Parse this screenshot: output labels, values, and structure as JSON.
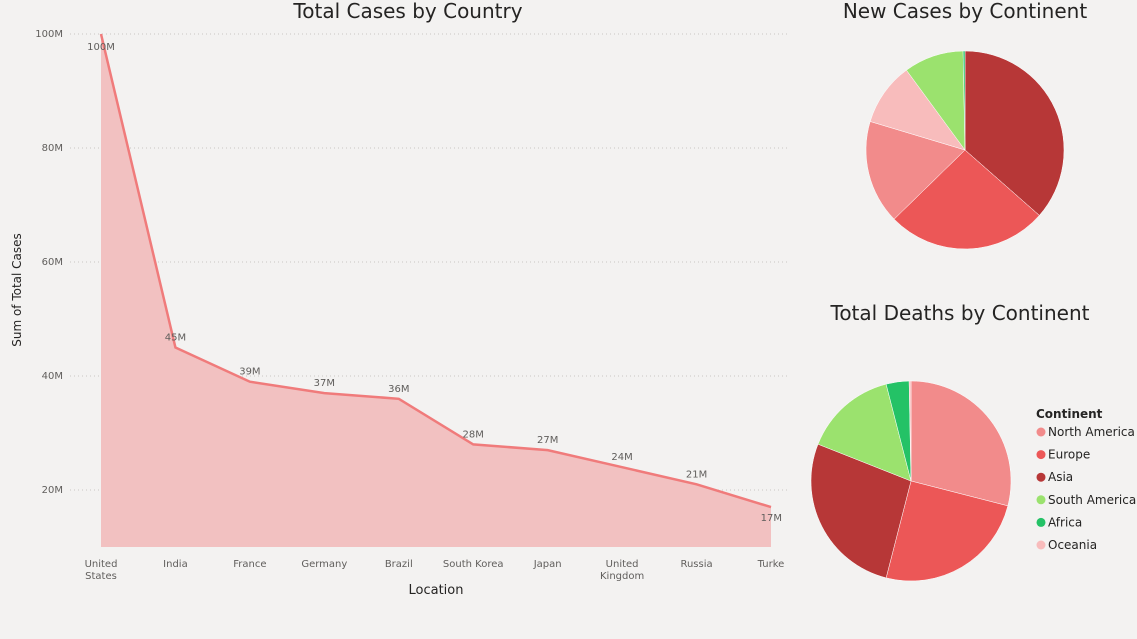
{
  "colors": {
    "area_line": "#f07b7b",
    "area_fill": "#f2c1c1",
    "north_america": "#f28b8b",
    "europe": "#ec5757",
    "asia": "#b73737",
    "south_america": "#9be26e",
    "africa": "#24c266",
    "oceania": "#f8bcbc"
  },
  "chart_data": [
    {
      "type": "area",
      "title": "Total Cases by Country",
      "xlabel": "Location",
      "ylabel": "Sum of Total Cases",
      "categories": [
        [
          "United",
          "States"
        ],
        [
          "India"
        ],
        [
          "France"
        ],
        [
          "Germany"
        ],
        [
          "Brazil"
        ],
        [
          "South Korea"
        ],
        [
          "Japan"
        ],
        [
          "United",
          "Kingdom"
        ],
        [
          "Russia"
        ],
        [
          "Turke"
        ]
      ],
      "values": [
        100,
        45,
        39,
        37,
        36,
        28,
        27,
        24,
        21,
        17
      ],
      "value_unit": "M",
      "data_labels": [
        "100M",
        "45M",
        "39M",
        "37M",
        "36M",
        "28M",
        "27M",
        "24M",
        "21M",
        "17M"
      ],
      "yticks": [
        20,
        40,
        60,
        80,
        100
      ],
      "ytick_labels": [
        "20M",
        "40M",
        "60M",
        "80M",
        "100M"
      ],
      "ylim": [
        10,
        100
      ],
      "grid": true
    },
    {
      "type": "pie",
      "title": "New Cases by Continent",
      "slices": [
        {
          "name": "Asia",
          "value": 35.5,
          "color_key": "asia"
        },
        {
          "name": "Europe",
          "value": 25.5,
          "color_key": "europe"
        },
        {
          "name": "North America",
          "value": 16.5,
          "color_key": "north_america"
        },
        {
          "name": "Oceania",
          "value": 10.0,
          "color_key": "oceania"
        },
        {
          "name": "South America",
          "value": 9.5,
          "color_key": "south_america"
        },
        {
          "name": "Africa",
          "value": 0.3,
          "color_key": "africa"
        }
      ]
    },
    {
      "type": "pie",
      "title": "Total Deaths by Continent",
      "slices": [
        {
          "name": "North America",
          "value": 29.0,
          "color_key": "north_america"
        },
        {
          "name": "Europe",
          "value": 25.0,
          "color_key": "europe"
        },
        {
          "name": "Asia",
          "value": 27.0,
          "color_key": "asia"
        },
        {
          "name": "South America",
          "value": 15.0,
          "color_key": "south_america"
        },
        {
          "name": "Africa",
          "value": 3.7,
          "color_key": "africa"
        },
        {
          "name": "Oceania",
          "value": 0.3,
          "color_key": "oceania"
        }
      ],
      "legend": {
        "title": "Continent",
        "placement": "right",
        "items": [
          {
            "label": "North America",
            "color_key": "north_america"
          },
          {
            "label": "Europe",
            "color_key": "europe"
          },
          {
            "label": "Asia",
            "color_key": "asia"
          },
          {
            "label": "South America",
            "color_key": "south_america"
          },
          {
            "label": "Africa",
            "color_key": "africa"
          },
          {
            "label": "Oceania",
            "color_key": "oceania"
          }
        ]
      }
    }
  ]
}
